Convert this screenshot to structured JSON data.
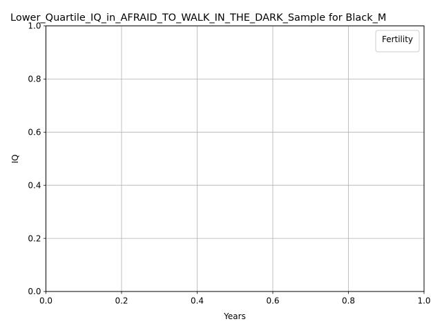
{
  "chart_data": {
    "type": "line",
    "title": "Lower_Quartile_IQ_in_AFRAID_TO_WALK_IN_THE_DARK_Sample for Black_M",
    "xlabel": "Years",
    "ylabel": "IQ",
    "xlim": [
      0.0,
      1.0
    ],
    "ylim": [
      0.0,
      1.0
    ],
    "xticks": [
      "0.0",
      "0.2",
      "0.4",
      "0.6",
      "0.8",
      "1.0"
    ],
    "yticks": [
      "0.0",
      "0.2",
      "0.4",
      "0.6",
      "0.8",
      "1.0"
    ],
    "grid": true,
    "legend": {
      "title": "Fertility",
      "placement": "top-right",
      "entries": []
    },
    "series": []
  }
}
